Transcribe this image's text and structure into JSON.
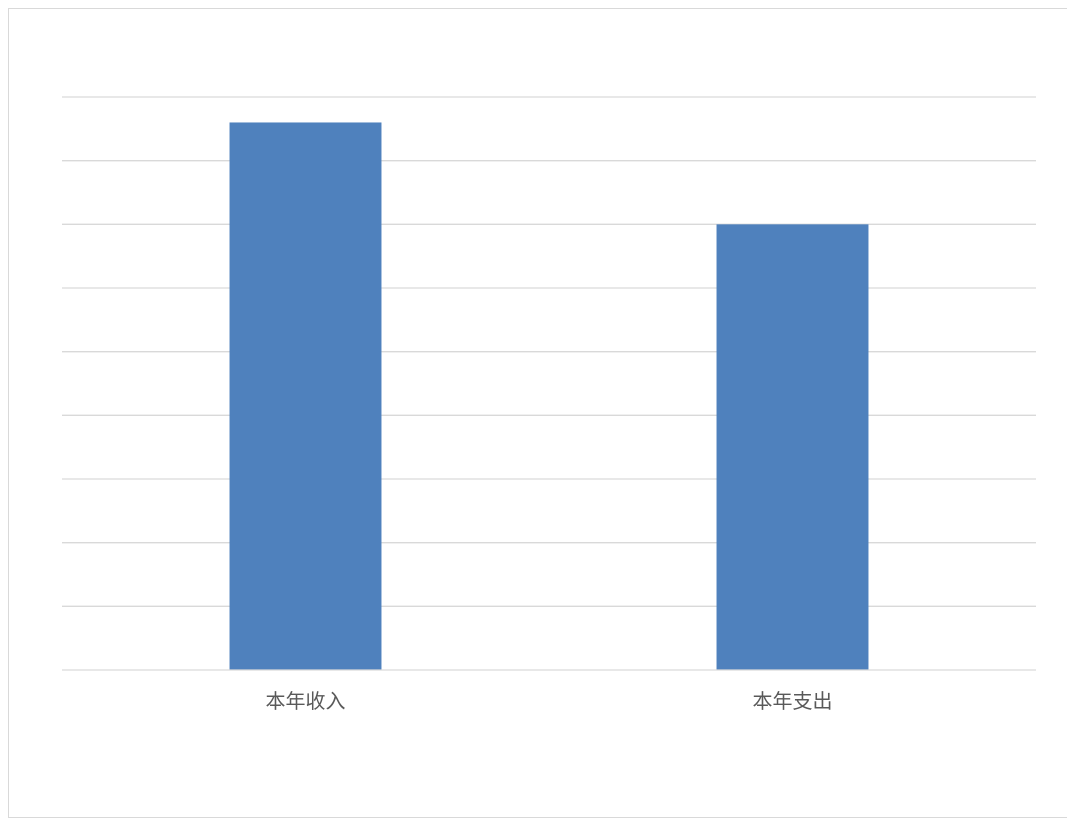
{
  "chart_data": {
    "type": "bar",
    "categories": [
      "本年收入",
      "本年支出"
    ],
    "series": [
      {
        "values": [
          8.6,
          7.0
        ]
      }
    ],
    "title": "",
    "xlabel": "",
    "ylabel": "",
    "ylim": [
      0,
      9
    ],
    "grid": true,
    "legend": "none",
    "bar_color": "#4f81bd"
  }
}
